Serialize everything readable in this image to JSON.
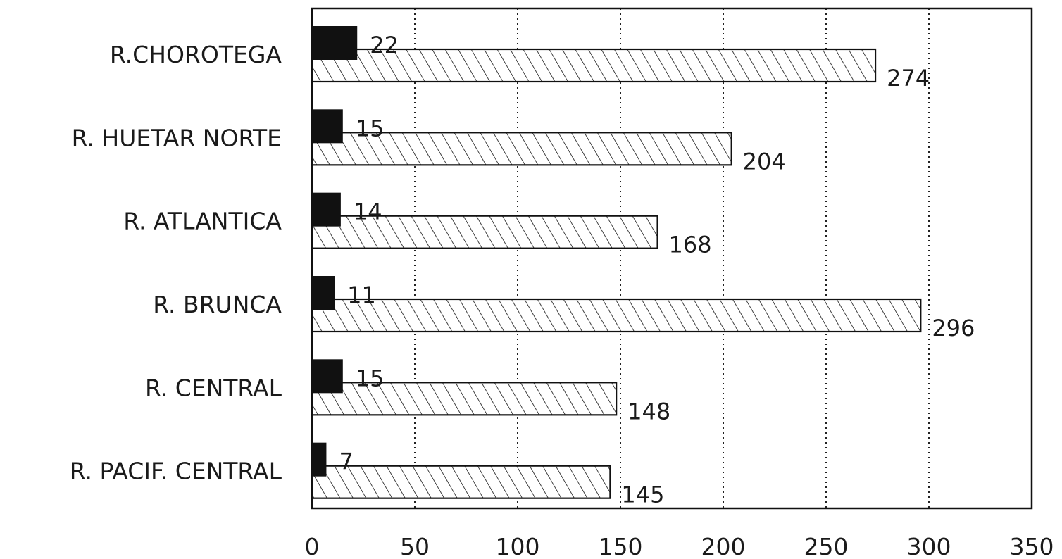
{
  "chart_data": {
    "type": "bar",
    "orientation": "horizontal",
    "categories": [
      "R.CHOROTEGA",
      "R. HUETAR NORTE",
      "R. ATLANTICA",
      "R. BRUNCA",
      "R. CENTRAL",
      "R. PACIF. CENTRAL"
    ],
    "series": [
      {
        "values": [
          22,
          15,
          14,
          11,
          15,
          7
        ],
        "fill": "solid",
        "color": "#111111"
      },
      {
        "values": [
          274,
          204,
          168,
          296,
          148,
          145
        ],
        "fill": "hatched",
        "color": "#111111"
      }
    ],
    "xlim": [
      0,
      350
    ],
    "xticks": [
      "0",
      "50",
      "100",
      "150",
      "200",
      "250",
      "300",
      "350"
    ],
    "grid": "vertical-dotted",
    "legend": "none",
    "title": "",
    "xlabel": "",
    "ylabel": ""
  }
}
